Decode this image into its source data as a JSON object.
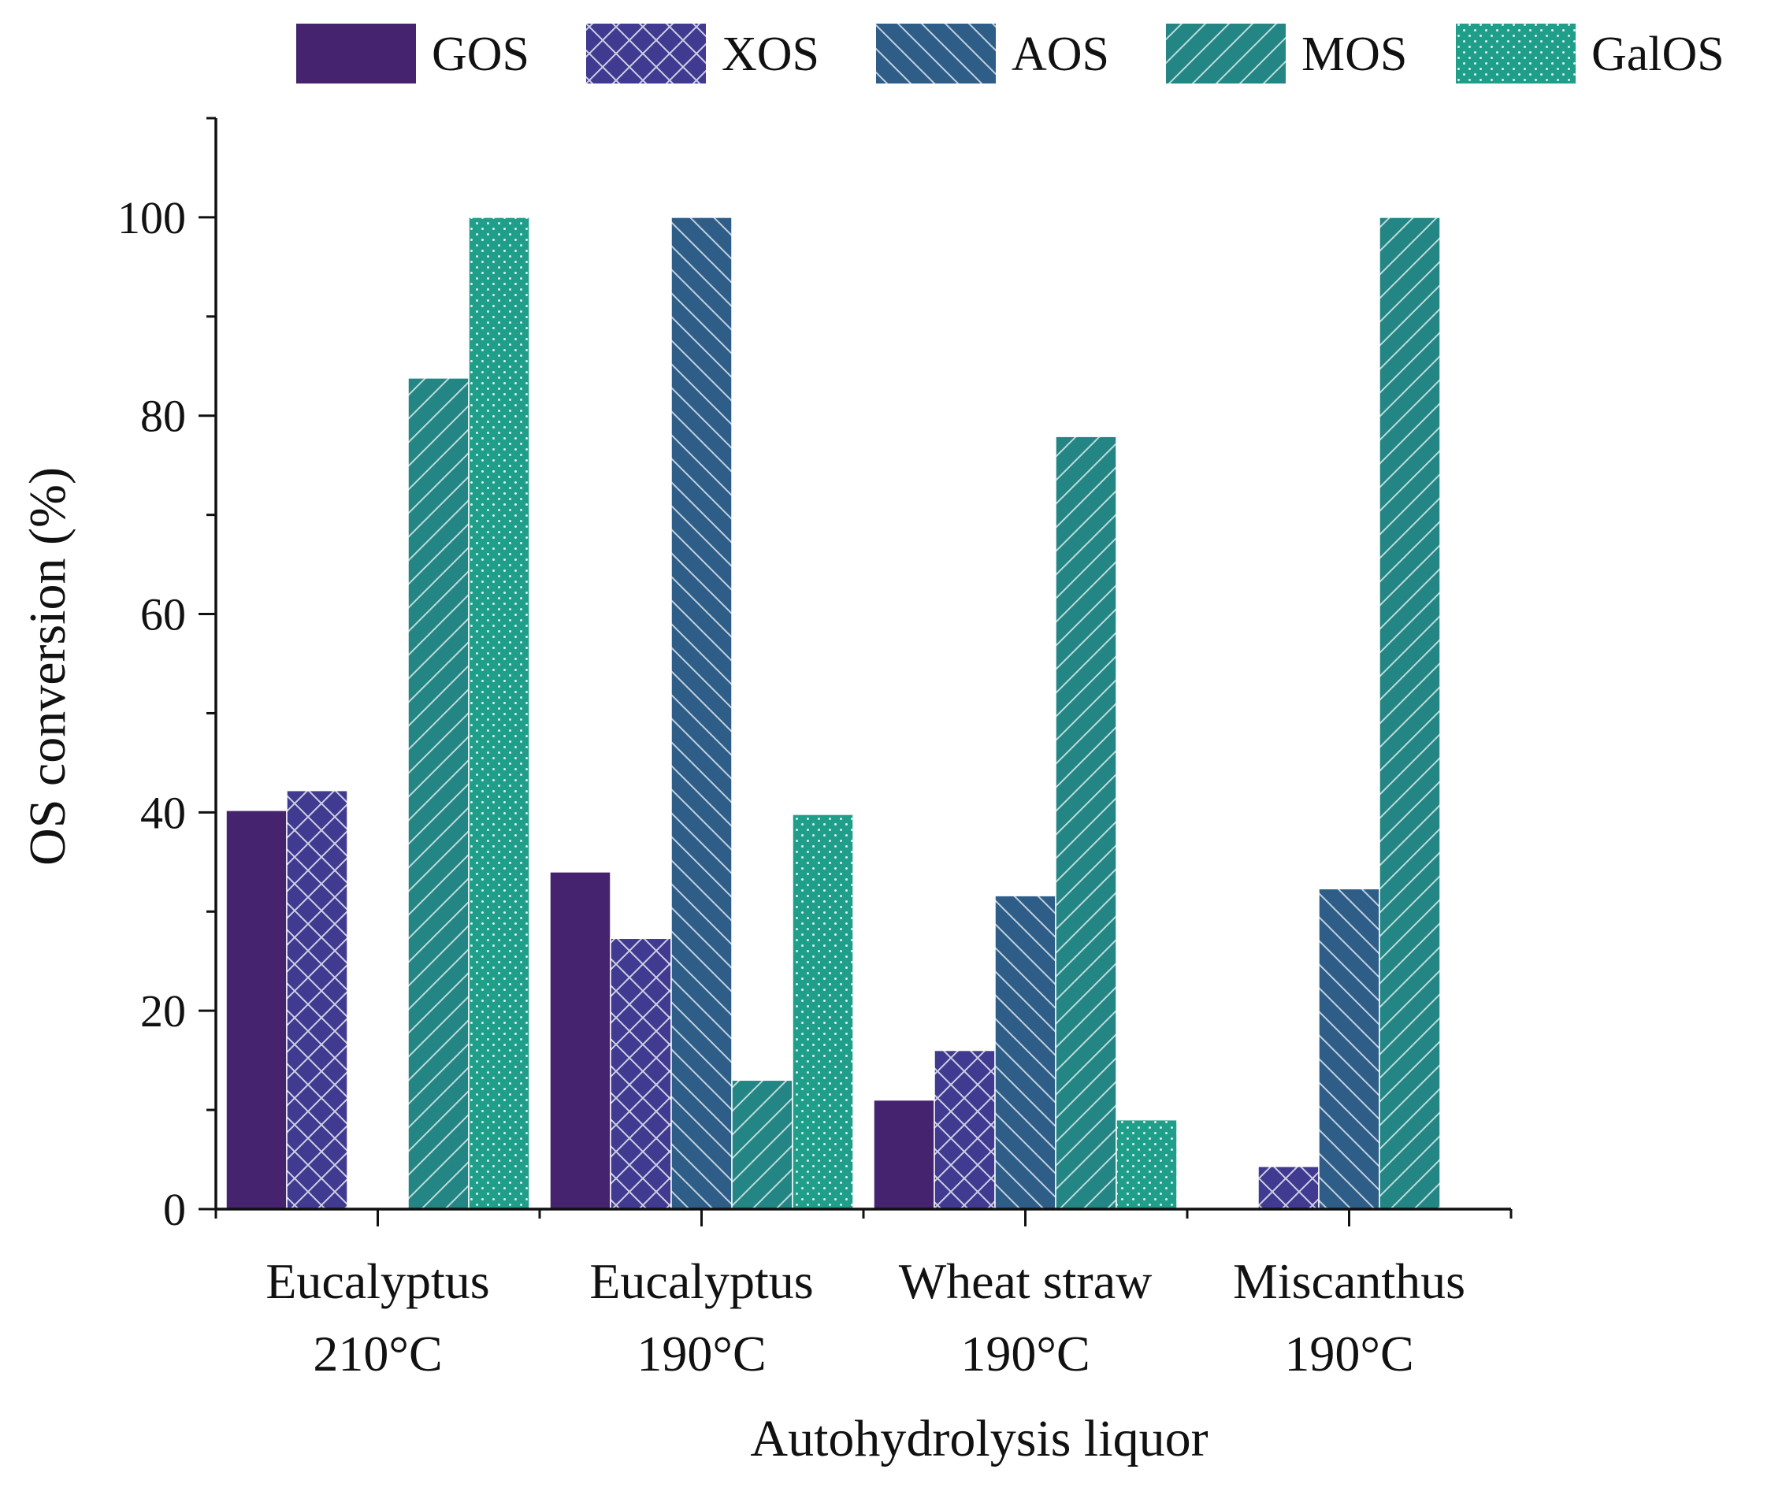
{
  "chart_data": {
    "type": "bar",
    "title": "",
    "xlabel": "Autohydrolysis liquor",
    "ylabel": "OS conversion (%)",
    "ylim": [
      0,
      110
    ],
    "yticks": [
      0,
      20,
      40,
      60,
      80,
      100
    ],
    "ytick_labels": [
      "0",
      "20",
      "40",
      "60",
      "80",
      "100"
    ],
    "grid": false,
    "legend_position": "top",
    "categories": [
      [
        "Eucalyptus",
        "210°C"
      ],
      [
        "Eucalyptus",
        "190°C"
      ],
      [
        "Wheat straw",
        "190°C"
      ],
      [
        "Miscanthus",
        "190°C"
      ]
    ],
    "series": [
      {
        "name": "GOS",
        "color": "#45236e",
        "pattern": "solid",
        "values": [
          40.2,
          34.0,
          11.0,
          null
        ]
      },
      {
        "name": "XOS",
        "color": "#403a91",
        "pattern": "crosshatch",
        "values": [
          42.2,
          27.3,
          16.0,
          4.3
        ]
      },
      {
        "name": "AOS",
        "color": "#2e5e88",
        "pattern": "backslash",
        "values": [
          null,
          100,
          31.6,
          32.3
        ]
      },
      {
        "name": "MOS",
        "color": "#238684",
        "pattern": "slash",
        "values": [
          83.8,
          13.0,
          77.9,
          100
        ]
      },
      {
        "name": "GalOS",
        "color": "#1f9e89",
        "pattern": "dots",
        "values": [
          100,
          39.8,
          9.0,
          null
        ]
      }
    ]
  }
}
